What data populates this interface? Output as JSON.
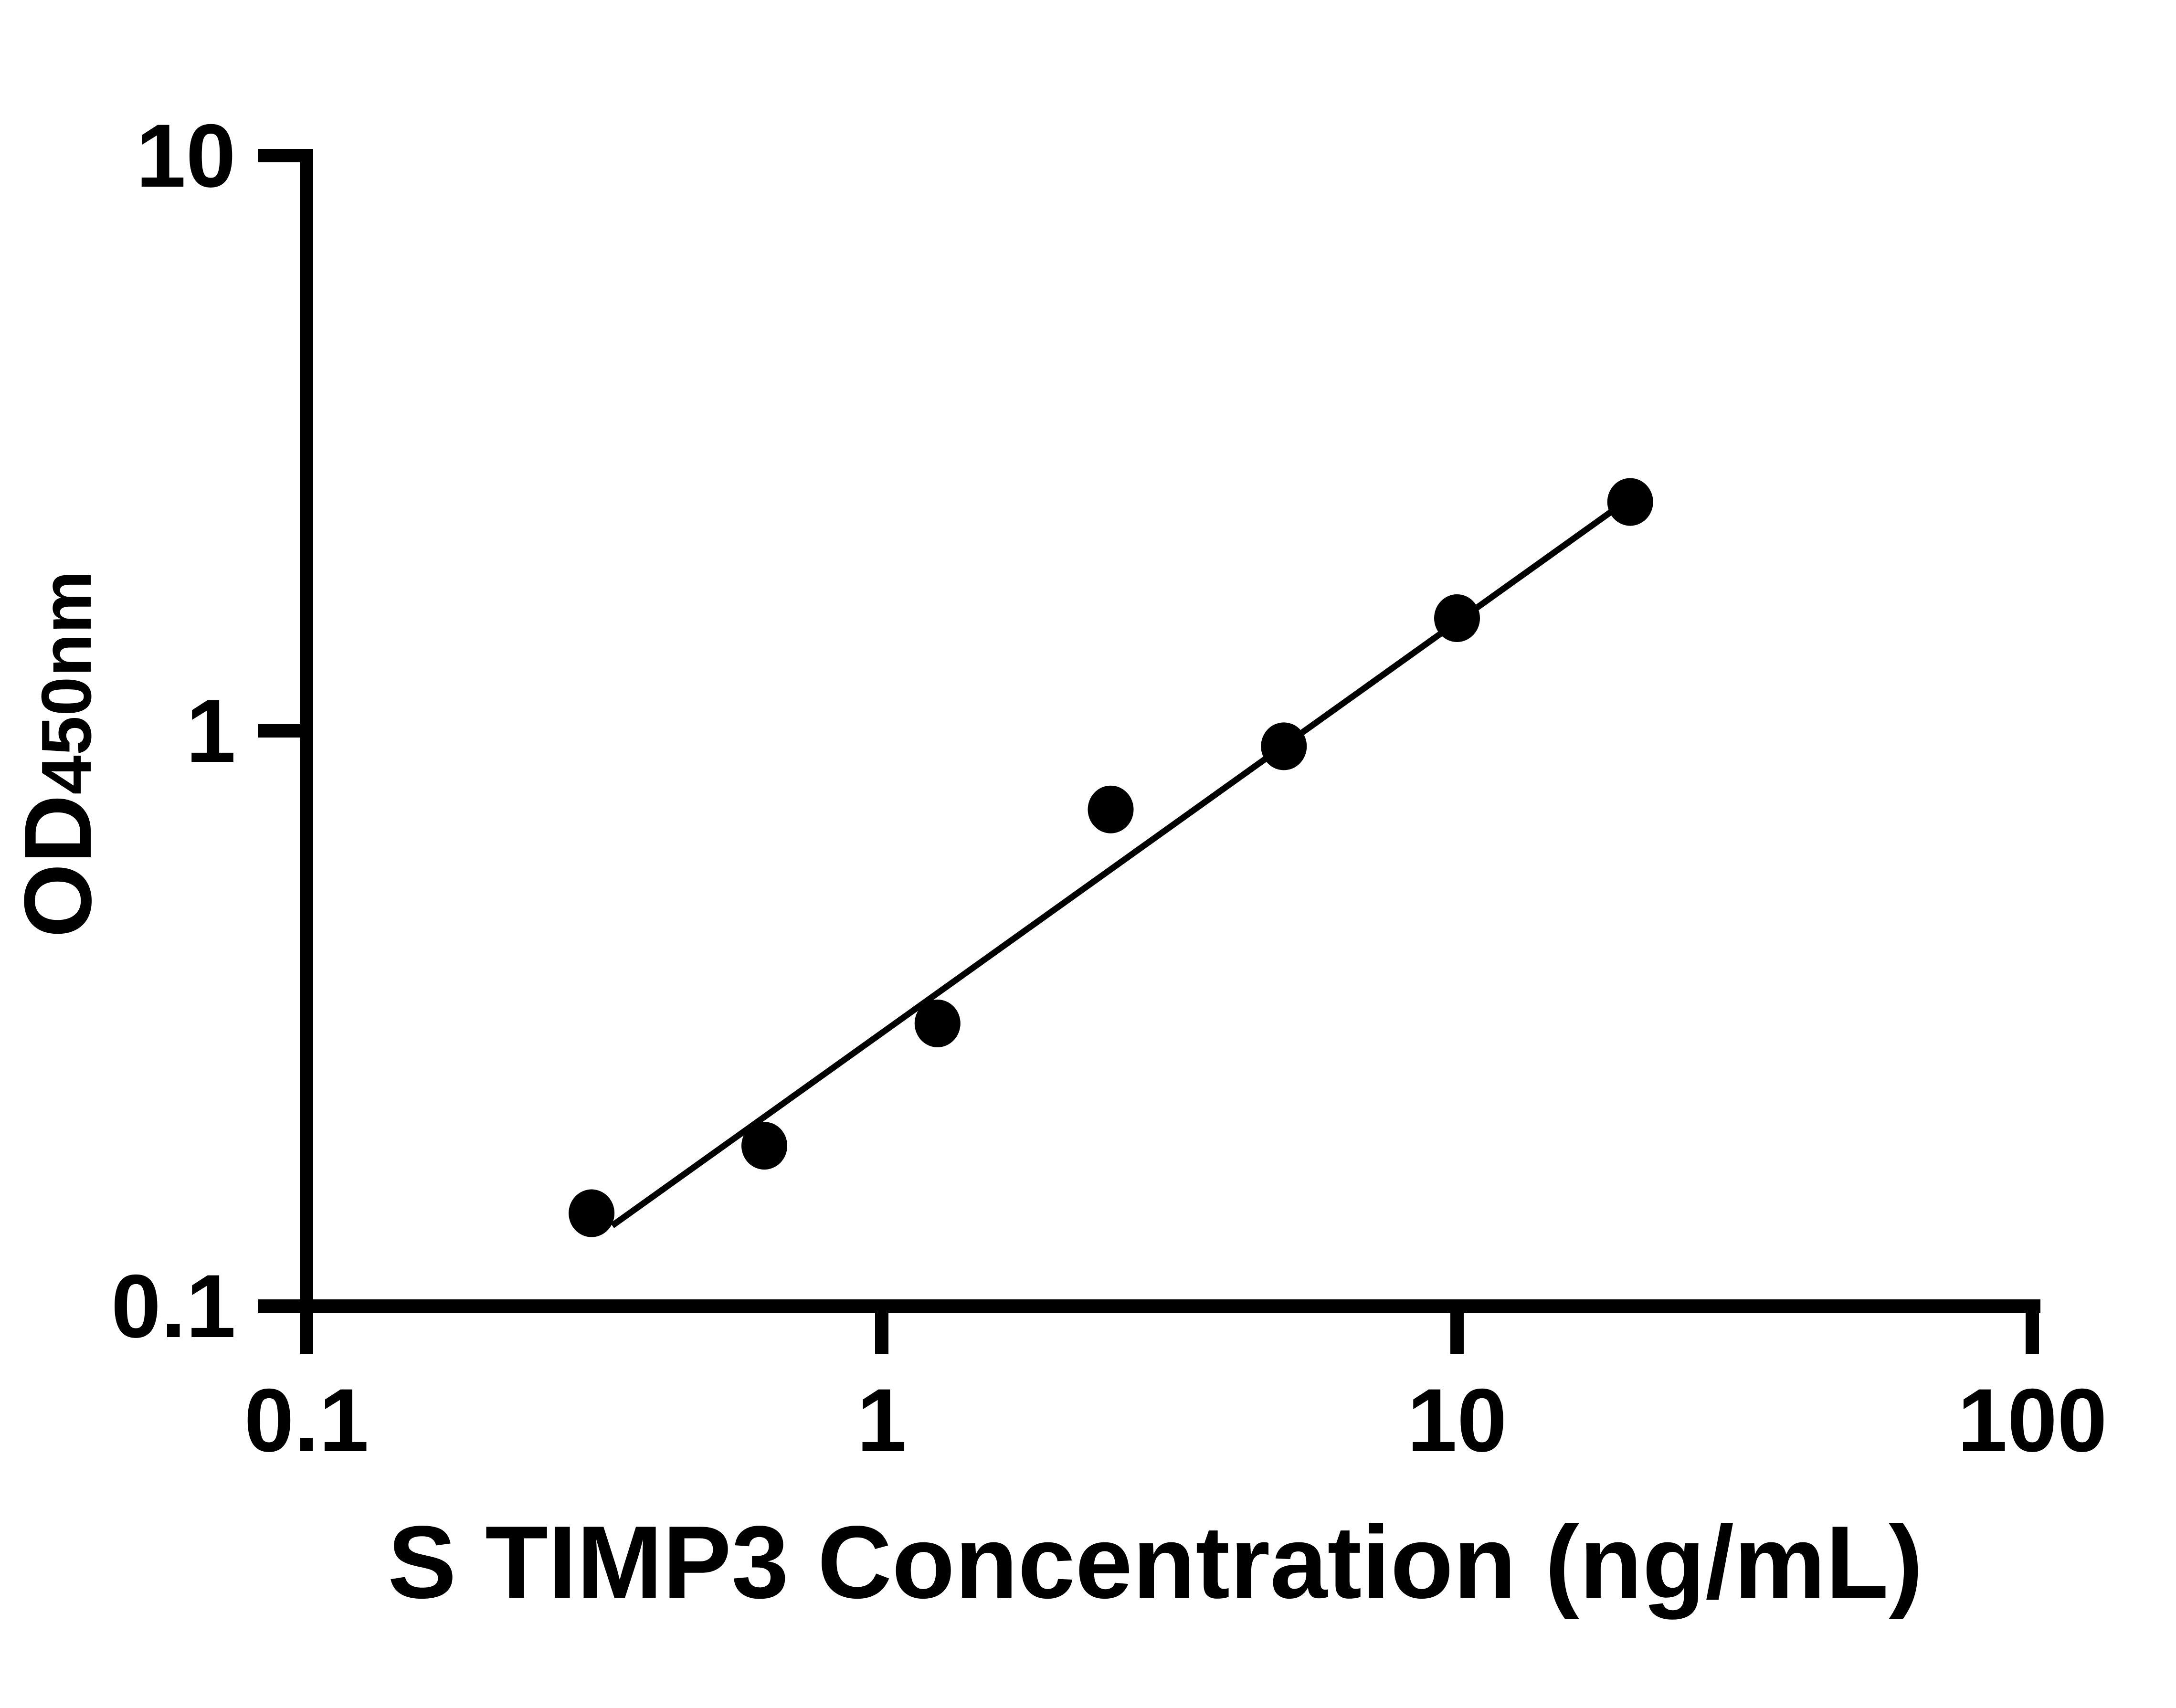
{
  "figure": {
    "background_color": "#ffffff",
    "ink_color": "#000000"
  },
  "chart_data": {
    "type": "scatter",
    "title": "",
    "xlabel": "S TIMP3 Concentration (ng/mL)",
    "ylabel": "OD450nm",
    "ylabel_main": "OD",
    "ylabel_sub": "450nm",
    "x_scale": "log",
    "y_scale": "log",
    "xlim": [
      0.1,
      100
    ],
    "ylim": [
      0.1,
      10
    ],
    "x_ticks": [
      "0.1",
      "1",
      "10",
      "100"
    ],
    "y_ticks": [
      "0.1",
      "1",
      "10"
    ],
    "grid": false,
    "legend_position": "none",
    "marker": {
      "shape": "filled-circle",
      "color": "#000000"
    },
    "series": [
      {
        "name": "standard-curve-points",
        "type": "scatter",
        "color": "#000000",
        "points": [
          {
            "x": 0.313,
            "y": 0.145
          },
          {
            "x": 0.625,
            "y": 0.19
          },
          {
            "x": 1.25,
            "y": 0.31
          },
          {
            "x": 2.5,
            "y": 0.73
          },
          {
            "x": 5,
            "y": 0.94
          },
          {
            "x": 10,
            "y": 1.57
          },
          {
            "x": 20,
            "y": 2.5
          }
        ]
      },
      {
        "name": "fit-line",
        "type": "line",
        "color": "#000000",
        "points": [
          {
            "x": 0.34,
            "y": 0.138
          },
          {
            "x": 19.8,
            "y": 2.52
          }
        ]
      }
    ]
  }
}
